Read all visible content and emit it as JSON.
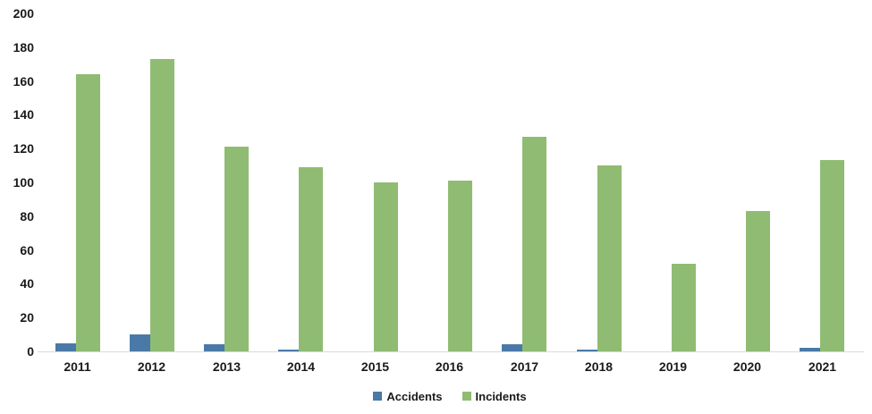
{
  "chart_data": {
    "type": "bar",
    "title": "",
    "categories": [
      "2011",
      "2012",
      "2013",
      "2014",
      "2015",
      "2016",
      "2017",
      "2018",
      "2019",
      "2020",
      "2021"
    ],
    "series": [
      {
        "name": "Accidents",
        "color": "#4a79a8",
        "values": [
          5,
          10,
          4,
          1,
          0,
          0,
          4,
          1,
          0,
          0,
          2
        ]
      },
      {
        "name": "Incidents",
        "color": "#8fbc72",
        "values": [
          164,
          173,
          121,
          109,
          100,
          101,
          127,
          110,
          52,
          83,
          113
        ]
      }
    ],
    "xlabel": "",
    "ylabel": "",
    "ylim": [
      0,
      200
    ],
    "ytick_step": 20,
    "yticks": [
      0,
      20,
      40,
      60,
      80,
      100,
      120,
      140,
      160,
      180,
      200
    ],
    "grid": false,
    "legend_position": "bottom"
  },
  "colors": {
    "background": "#ffffff",
    "axis_text": "#1a1a1a",
    "baseline": "#d9d9d9",
    "accidents": "#4a79a8",
    "incidents": "#8fbc72"
  }
}
